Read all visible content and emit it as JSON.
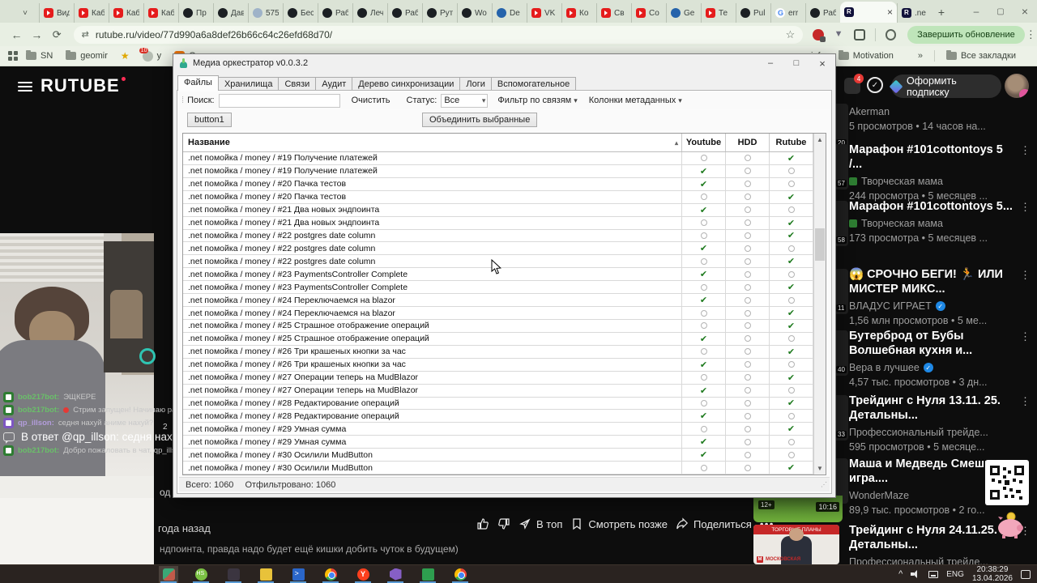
{
  "browser": {
    "tabs": [
      {
        "icon": "youtube",
        "label": "Вид"
      },
      {
        "icon": "youtube",
        "label": "Каб"
      },
      {
        "icon": "youtube",
        "label": "Каб"
      },
      {
        "icon": "youtube",
        "label": "Каб"
      },
      {
        "icon": "github",
        "label": "Пр"
      },
      {
        "icon": "github",
        "label": "Дав"
      },
      {
        "icon": "globe",
        "label": "575"
      },
      {
        "icon": "github",
        "label": "Бес"
      },
      {
        "icon": "github",
        "label": "Раб"
      },
      {
        "icon": "github",
        "label": "Леч"
      },
      {
        "icon": "github",
        "label": "Раб"
      },
      {
        "icon": "github",
        "label": "Рут"
      },
      {
        "icon": "github",
        "label": "Wo"
      },
      {
        "icon": "blue",
        "label": "De"
      },
      {
        "icon": "youtube",
        "label": "VK"
      },
      {
        "icon": "youtube",
        "label": "Ко"
      },
      {
        "icon": "youtube",
        "label": "Св"
      },
      {
        "icon": "youtube",
        "label": "Со"
      },
      {
        "icon": "blue",
        "label": "Ge"
      },
      {
        "icon": "youtube",
        "label": "Те"
      },
      {
        "icon": "github",
        "label": "Pul"
      },
      {
        "icon": "google",
        "label": "err"
      },
      {
        "icon": "github",
        "label": "Раб"
      },
      {
        "icon": "rutube",
        "label": "",
        "active": true
      },
      {
        "icon": "rutube",
        "label": ".ne"
      }
    ],
    "url": "rutube.ru/video/77d990a6a8def26b66c64c26efd68d70/",
    "update_button": "Завершить обновление",
    "bookmarks_left": [
      {
        "icon": "folder",
        "label": "SN"
      },
      {
        "icon": "folder",
        "label": "geomir"
      },
      {
        "icon": "star",
        "label": ""
      },
      {
        "icon": "red-badge",
        "label": "y",
        "badge": "10"
      },
      {
        "icon": "orange",
        "label": "G"
      }
    ],
    "bookmarks_right": [
      {
        "icon": "none",
        "label": "info"
      },
      {
        "icon": "folder",
        "label": "Motivation"
      }
    ],
    "all_bookmarks": "Все закладки"
  },
  "page": {
    "logo": "RUTUBE",
    "header": {
      "subscribe": "Оформить подписку",
      "notifications_badge": "4"
    },
    "player": {
      "age": "года назад",
      "top_label": "В топ",
      "watch_later_label": "Смотреть позже",
      "share_label": "Поделиться",
      "description": "ндпоинта, правда надо будет ещё кишки добить чуток в будущем)"
    },
    "fragments": {
      "edge1": "2",
      "edge2": "од"
    },
    "chat": {
      "messages": [
        {
          "user": "bob217bot",
          "avatar": "green",
          "text": "ЭЩКЕРЕ"
        },
        {
          "user": "bob217bot",
          "avatar": "green",
          "red_dot": true,
          "text": "Стрим запущен! Начинаю рассылку."
        },
        {
          "user": "qp_illson",
          "avatar": "purple",
          "text": "седня нахуй аниме нахуй?"
        },
        {
          "reply": true,
          "text": "В ответ @qp_illson: седня нахуй аниме"
        },
        {
          "user": "bob217bot",
          "avatar": "green",
          "text": "Добро пожаловать в чат, qp_illson!",
          "emoji_after": true
        }
      ]
    },
    "sidebar": {
      "cards": [
        {
          "title": "",
          "channel": "Akerman",
          "meta": "5 просмотров • 14 часов на...",
          "duration": "20"
        },
        {
          "title": "Марафон #101cottontoys 5 /...",
          "channel": "Творческая мама",
          "channel_chip": true,
          "meta": "244 просмотра • 5 месяцев ...",
          "duration": "57"
        },
        {
          "title": "Марафон #101cottontoys 5...",
          "channel": "Творческая мама",
          "channel_chip": true,
          "meta": "173 просмотра • 5 месяцев ...",
          "duration": "58"
        },
        {
          "title": "😱 СРОЧНО БЕГИ! 🏃 ИЛИ МИСТЕР МИКС...",
          "channel": "ВЛАДУС ИГРАЕТ",
          "verified": true,
          "meta": "1,56 млн просмотров • 5 ме...",
          "duration": "11"
        },
        {
          "title": "Бутерброд от Бубы Волшебная кухня и...",
          "channel": "Вера в лучшее",
          "verified": true,
          "meta": "4,57 тыс. просмотров • 3 дн...",
          "duration": "40"
        },
        {
          "title": "Трейдинг с Нуля 13.11. 25. Детальны...",
          "channel": "Профессиональный трейде...",
          "meta": "595 просмотров • 5 месяце...",
          "duration": "33"
        },
        {
          "title": "Маша и Медведь Смешная игра....",
          "channel": "WonderMaze",
          "meta": "89,9 тыс. просмотров • 2 го...",
          "duration": "10:16",
          "age_badge": "12+"
        },
        {
          "title": "Трейдинг с Нуля 24.11.25. Детальны...",
          "channel": "Профессиональный трейде...",
          "meta": "",
          "thumb_title": "ТОРГОВЫЕ ПЛАНЫ",
          "thumb_brand": "МОСКОВСКАЯ"
        }
      ]
    }
  },
  "app": {
    "title": "Медиа оркестратор v0.0.3.2",
    "tabs": [
      "Файлы",
      "Хранилища",
      "Связи",
      "Аудит",
      "Дерево синхронизации",
      "Логи",
      "Вспомогательное"
    ],
    "active_tab": "Файлы",
    "toolbar": {
      "search_label": "Поиск:",
      "search_value": "",
      "clear_label": "Очистить",
      "status_label": "Статус:",
      "status_value": "Все",
      "filter_links_label": "Фильтр по связям",
      "metadata_columns_label": "Колонки метаданных"
    },
    "buttons": {
      "button1": "button1",
      "merge": "Объединить выбранные"
    },
    "table": {
      "columns": [
        "Название",
        "Youtube",
        "HDD",
        "Rutube"
      ],
      "rows": [
        {
          "name": ".net помойка / money / #19 Получение платежей",
          "checked": "rutube"
        },
        {
          "name": ".net помойка / money / #19 Получение платежей",
          "checked": "youtube"
        },
        {
          "name": ".net помойка / money / #20 Пачка тестов",
          "checked": "youtube"
        },
        {
          "name": ".net помойка / money / #20 Пачка тестов",
          "checked": "rutube"
        },
        {
          "name": ".net помойка / money / #21 Два новых эндпоинта",
          "checked": "youtube"
        },
        {
          "name": ".net помойка / money / #21 Два новых эндпоинта",
          "checked": "rutube"
        },
        {
          "name": ".net помойка / money / #22 postgres date column",
          "checked": "rutube"
        },
        {
          "name": ".net помойка / money / #22 postgres date column",
          "checked": "youtube"
        },
        {
          "name": ".net помойка / money / #22 postgres date column",
          "checked": "rutube"
        },
        {
          "name": ".net помойка / money / #23 PaymentsController Complete",
          "checked": "youtube"
        },
        {
          "name": ".net помойка / money / #23 PaymentsController Complete",
          "checked": "rutube"
        },
        {
          "name": ".net помойка / money / #24 Переключаемся на blazor",
          "checked": "youtube"
        },
        {
          "name": ".net помойка / money / #24 Переключаемся на blazor",
          "checked": "rutube"
        },
        {
          "name": ".net помойка / money / #25 Страшное отображение операций",
          "checked": "rutube"
        },
        {
          "name": ".net помойка / money / #25 Страшное отображение операций",
          "checked": "youtube"
        },
        {
          "name": ".net помойка / money / #26 Три крашеных кнопки за час",
          "checked": "rutube"
        },
        {
          "name": ".net помойка / money / #26 Три крашеных кнопки за час",
          "checked": "youtube"
        },
        {
          "name": ".net помойка / money / #27 Операции теперь на MudBlazor",
          "checked": "rutube"
        },
        {
          "name": ".net помойка / money / #27 Операции теперь на MudBlazor",
          "checked": "youtube"
        },
        {
          "name": ".net помойка / money / #28 Редактирование операций",
          "checked": "rutube"
        },
        {
          "name": ".net помойка / money / #28 Редактирование операций",
          "checked": "youtube"
        },
        {
          "name": ".net помойка / money / #29 Умная сумма",
          "checked": "rutube"
        },
        {
          "name": ".net помойка / money / #29 Умная сумма",
          "checked": "youtube"
        },
        {
          "name": ".net помойка / money / #30 Осилили MudButton",
          "checked": "youtube"
        },
        {
          "name": ".net помойка / money / #30 Осилили MudButton",
          "checked": "rutube"
        }
      ]
    },
    "status_bar": {
      "total": "Всего: 1060",
      "filtered": "Отфильтровано: 1060"
    }
  },
  "taskbar": {
    "apps": [
      "media-orchestrator",
      "hs",
      "photos",
      "explorer",
      "powershell",
      "chrome-1",
      "yandex-browser",
      "visual-studio",
      "green-app",
      "chrome-2"
    ],
    "tray": {
      "lang": "ENG",
      "time": "20:38:29",
      "date": "13.04.2026"
    }
  }
}
